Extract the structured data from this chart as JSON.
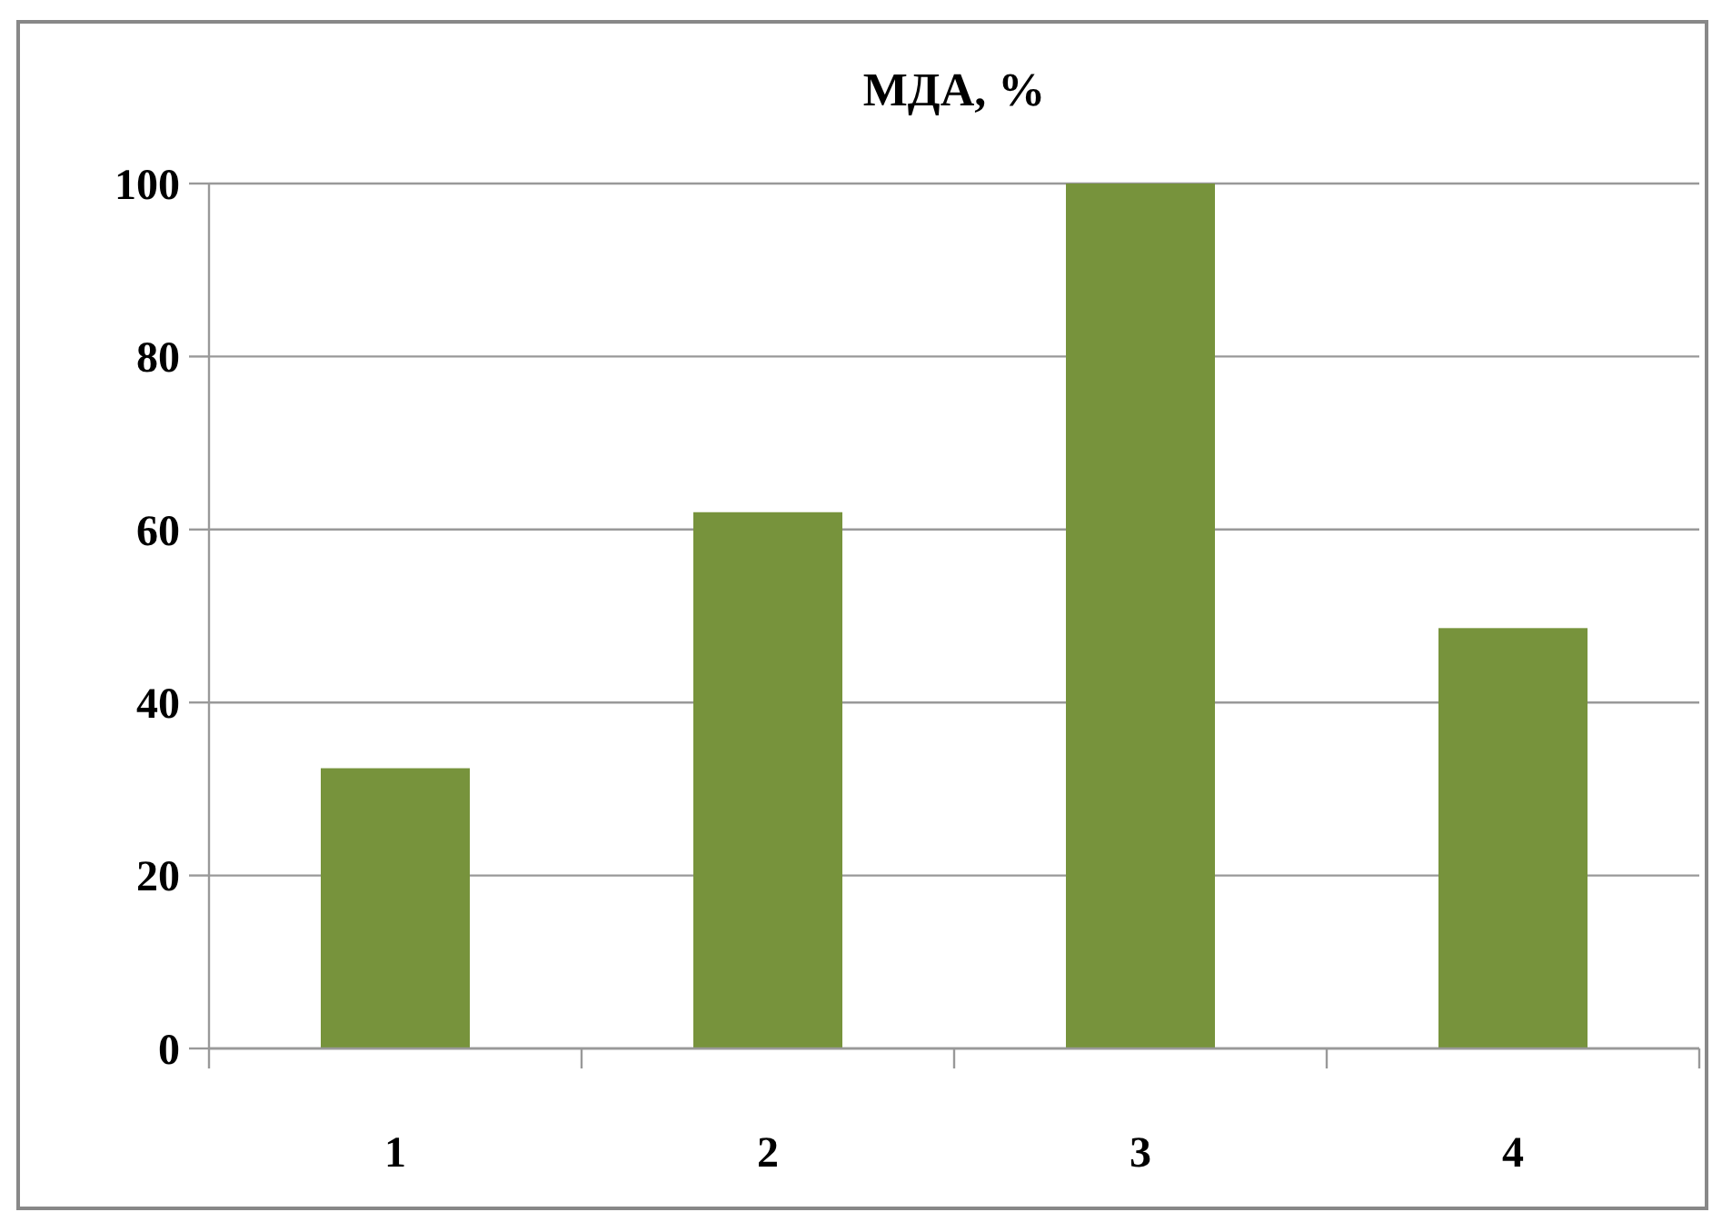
{
  "chart_data": {
    "type": "bar",
    "title": "МДА, %",
    "categories": [
      "1",
      "2",
      "3",
      "4"
    ],
    "values": [
      32.4,
      62,
      100,
      48.6
    ],
    "color": "#77933c",
    "ylim": [
      0,
      100
    ],
    "yticks": [
      0,
      20,
      40,
      60,
      80,
      100
    ],
    "grid": "y"
  }
}
